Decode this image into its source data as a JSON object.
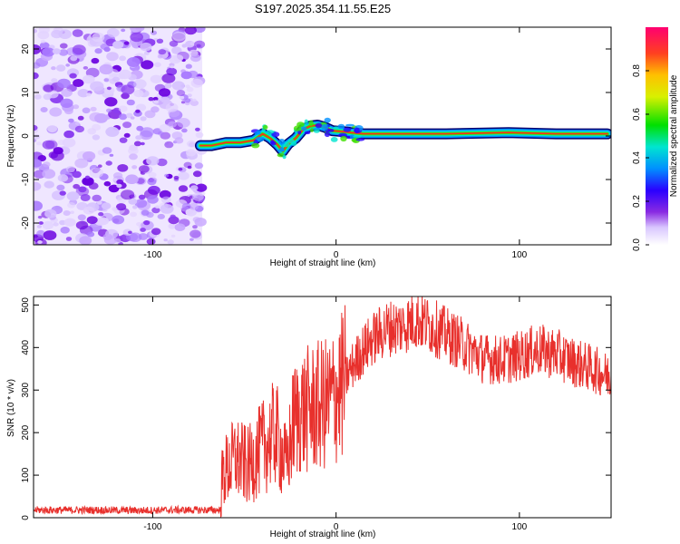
{
  "title": "S197.2025.354.11.55.E25",
  "chart_data": [
    {
      "type": "heatmap",
      "xlabel": "Height of straight line (km)",
      "ylabel": "Frequency (Hz)",
      "xlim": [
        -165,
        150
      ],
      "ylim": [
        -25,
        25
      ],
      "xticks": [
        "-100",
        "0",
        "100"
      ],
      "xtick_values": [
        -100,
        0,
        100
      ],
      "yticks": [
        "-20",
        "-10",
        "0",
        "10",
        "20"
      ],
      "ytick_values": [
        -20,
        -10,
        0,
        10,
        20
      ],
      "noise_region_x": [
        -165,
        -73
      ],
      "ridge": {
        "x": [
          -74,
          -68,
          -60,
          -52,
          -45,
          -40,
          -36,
          -32,
          -29,
          -26,
          -22,
          -18,
          -14,
          -10,
          -6,
          -2,
          4,
          8,
          15,
          30,
          60,
          94,
          120,
          148
        ],
        "y": [
          -2.2,
          -2.2,
          -1.5,
          -1.5,
          -1.0,
          0.5,
          -0.5,
          -2.0,
          -3.5,
          -1.8,
          -0.5,
          1.5,
          2.3,
          2.5,
          2.0,
          1.2,
          1.0,
          0.8,
          0.5,
          0.5,
          0.5,
          0.8,
          0.5,
          0.5
        ]
      },
      "colorbar": {
        "label": "Normalized spectral amplitude",
        "ticks": [
          "0.0",
          "0.2",
          "0.4",
          "0.6",
          "0.8"
        ],
        "tick_values": [
          0,
          0.2,
          0.4,
          0.6,
          0.8
        ],
        "range": [
          0,
          1
        ]
      }
    },
    {
      "type": "line",
      "xlabel": "Height of straight line (km)",
      "ylabel": "SNR (10 * v/v)",
      "xlim": [
        -165,
        150
      ],
      "ylim": [
        0,
        520
      ],
      "xticks": [
        "-100",
        "0",
        "100"
      ],
      "xtick_values": [
        -100,
        0,
        100
      ],
      "yticks": [
        "0",
        "100",
        "200",
        "300",
        "400",
        "500"
      ],
      "ytick_values": [
        0,
        100,
        200,
        300,
        400,
        500
      ],
      "color": "#e8302c",
      "series": [
        {
          "name": "SNR",
          "x": [
            -165,
            -150,
            -130,
            -110,
            -90,
            -75,
            -63,
            -62,
            -55,
            -48,
            -40,
            -33,
            -27,
            -23,
            -18,
            -10,
            -4,
            2,
            8,
            14,
            20,
            28,
            36,
            44,
            52,
            60,
            70,
            80,
            90,
            100,
            110,
            120,
            130,
            140,
            150
          ],
          "values": [
            18,
            18,
            18,
            17,
            18,
            18,
            18,
            100,
            140,
            120,
            165,
            200,
            120,
            230,
            250,
            260,
            270,
            300,
            350,
            390,
            420,
            445,
            450,
            465,
            450,
            430,
            405,
            375,
            370,
            380,
            395,
            385,
            365,
            350,
            330
          ]
        }
      ]
    }
  ]
}
